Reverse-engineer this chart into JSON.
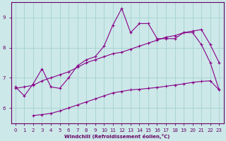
{
  "xlabel": "Windchill (Refroidissement éolien,°C)",
  "background_color": "#cce8e8",
  "line_color": "#880088",
  "grid_color": "#aad4d4",
  "axis_color": "#660066",
  "xmin": -0.5,
  "xmax": 23.5,
  "ymin": 5.5,
  "ymax": 9.5,
  "yticks": [
    6,
    7,
    8,
    9
  ],
  "xticks": [
    0,
    1,
    2,
    3,
    4,
    5,
    6,
    7,
    8,
    9,
    10,
    11,
    12,
    13,
    14,
    15,
    16,
    17,
    18,
    19,
    20,
    21,
    22,
    23
  ],
  "line1_x": [
    0,
    1,
    2,
    3,
    4,
    5,
    6,
    7,
    8,
    9,
    10,
    11,
    12,
    13,
    14,
    15,
    16,
    17,
    18,
    19,
    20,
    21,
    22,
    23
  ],
  "line1_y": [
    6.7,
    6.4,
    6.8,
    7.3,
    6.7,
    6.65,
    7.0,
    7.4,
    7.6,
    7.7,
    8.05,
    8.75,
    9.3,
    8.5,
    8.8,
    8.8,
    8.3,
    8.3,
    8.3,
    8.5,
    8.5,
    8.1,
    7.5,
    6.6
  ],
  "line2_x": [
    0,
    1,
    2,
    3,
    4,
    5,
    6,
    7,
    8,
    9,
    10,
    11,
    12,
    13,
    14,
    15,
    16,
    17,
    18,
    19,
    20,
    21,
    22,
    23
  ],
  "line2_y": [
    6.65,
    6.7,
    6.75,
    6.9,
    7.0,
    7.1,
    7.2,
    7.35,
    7.5,
    7.6,
    7.7,
    7.8,
    7.85,
    7.95,
    8.05,
    8.15,
    8.25,
    8.35,
    8.4,
    8.5,
    8.55,
    8.6,
    8.1,
    7.5
  ],
  "line3_x": [
    2,
    3,
    4,
    5,
    6,
    7,
    8,
    9,
    10,
    11,
    12,
    13,
    14,
    15,
    16,
    17,
    18,
    19,
    20,
    21,
    22,
    23
  ],
  "line3_y": [
    5.75,
    5.78,
    5.82,
    5.9,
    6.0,
    6.1,
    6.2,
    6.3,
    6.4,
    6.5,
    6.55,
    6.6,
    6.62,
    6.65,
    6.68,
    6.72,
    6.76,
    6.8,
    6.85,
    6.88,
    6.9,
    6.6
  ]
}
